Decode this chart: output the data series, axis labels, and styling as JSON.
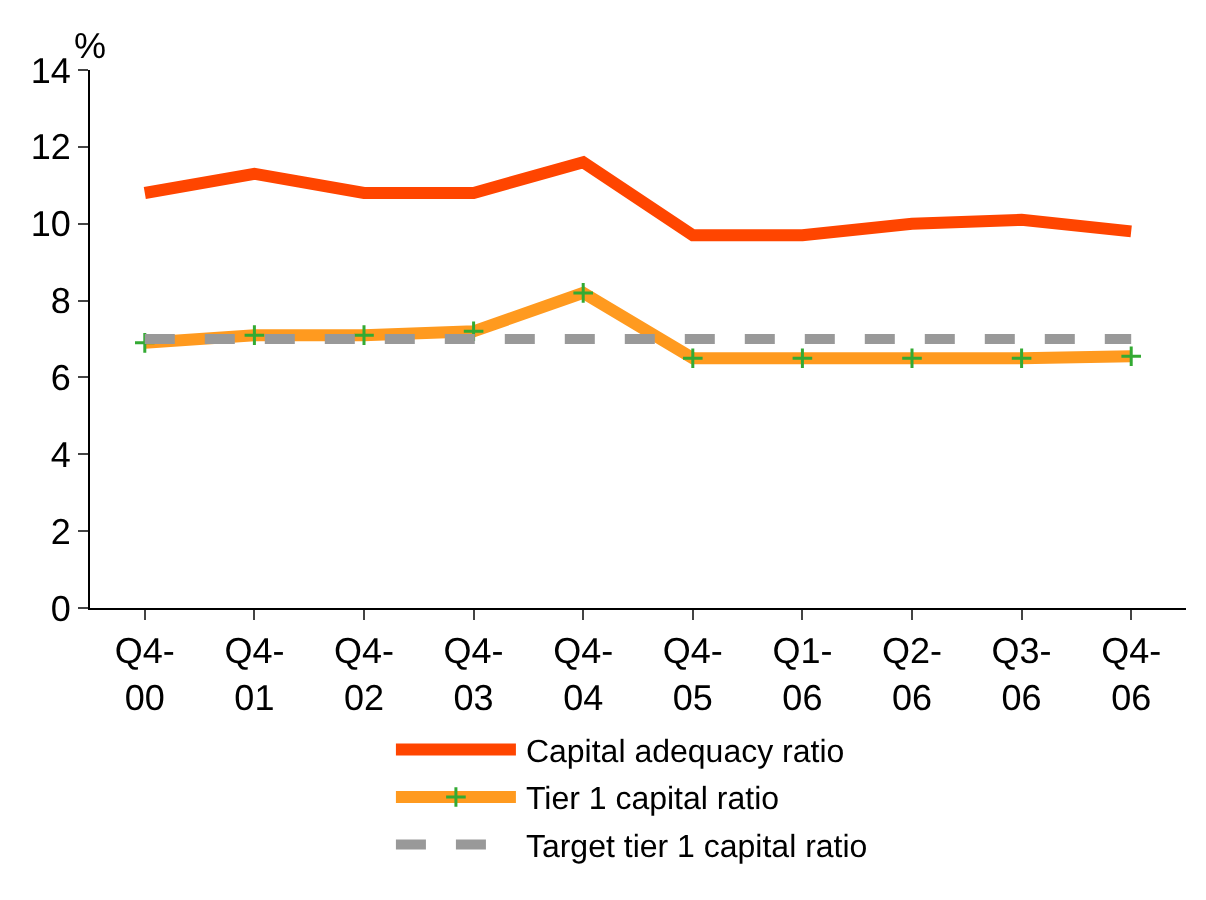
{
  "chart_data": {
    "type": "line",
    "ylabel": "%",
    "categories": [
      "Q4-00",
      "Q4-01",
      "Q4-02",
      "Q4-03",
      "Q4-04",
      "Q4-05",
      "Q1-06",
      "Q2-06",
      "Q3-06",
      "Q4-06"
    ],
    "series": [
      {
        "name": "Capital adequacy ratio",
        "color": "#ff4500",
        "values": [
          10.8,
          11.3,
          10.8,
          10.8,
          11.6,
          9.7,
          9.7,
          10.0,
          10.1,
          9.8
        ]
      },
      {
        "name": "Tier 1 capital ratio",
        "color": "#ff9a1f",
        "marker": "cross",
        "values": [
          6.9,
          7.1,
          7.1,
          7.2,
          8.2,
          6.5,
          6.5,
          6.5,
          6.5,
          6.55
        ]
      },
      {
        "name": "Target tier 1 capital ratio",
        "color": "#999999",
        "line_style": "dashed",
        "values": [
          7,
          7,
          7,
          7,
          7,
          7,
          7,
          7,
          7,
          7
        ]
      }
    ],
    "ylim": [
      0,
      14
    ],
    "yticks": [
      0,
      2,
      4,
      6,
      8,
      10,
      12,
      14
    ],
    "grid": false,
    "legend": "bottom"
  }
}
